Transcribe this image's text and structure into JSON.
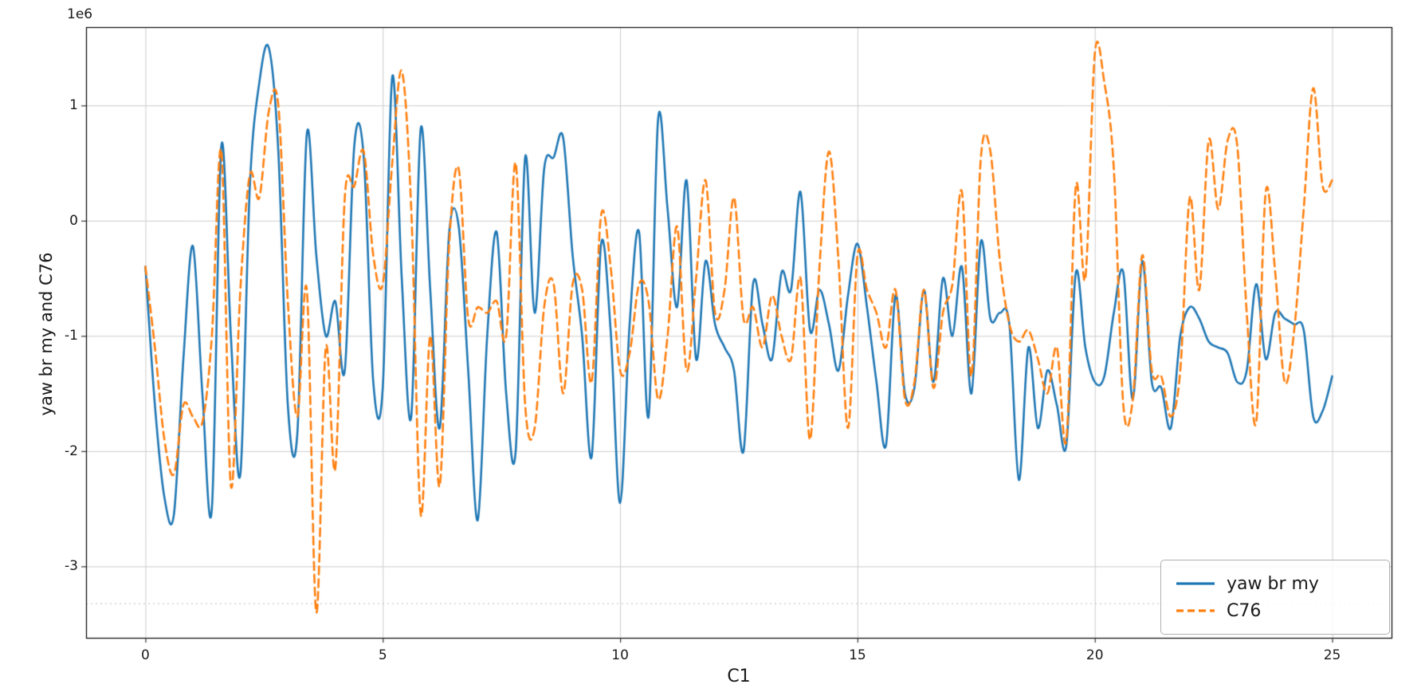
{
  "chart_data": {
    "type": "line",
    "title": "",
    "xlabel": "C1",
    "ylabel": "yaw br my and C76",
    "y_offset_label": "1e6",
    "y_unit_multiplier": 1000000,
    "x_start": 0,
    "x_step": 0.2,
    "xlim": [
      -1.25,
      26.25
    ],
    "ylim": [
      -3.62,
      1.68
    ],
    "xticks": [
      0,
      5,
      10,
      15,
      20,
      25
    ],
    "yticks": [
      1,
      0,
      -1,
      -2,
      -3
    ],
    "grid": true,
    "grid_color": "#cccccc",
    "dotted_line_y": -3.32,
    "spine_color": "#000000",
    "legend_position": "lower right",
    "series": [
      {
        "name": "yaw br my",
        "color": "#1f77b4",
        "style": "solid",
        "values": [
          -0.4,
          -1.6,
          -2.4,
          -2.55,
          -1.2,
          -0.22,
          -1.5,
          -2.5,
          0.65,
          -1.0,
          -2.2,
          0.3,
          1.2,
          1.5,
          0.6,
          -1.6,
          -1.85,
          0.75,
          -0.3,
          -1.0,
          -0.7,
          -1.3,
          0.65,
          0.55,
          -1.4,
          -1.45,
          1.25,
          -0.5,
          -1.7,
          0.8,
          -0.6,
          -1.8,
          -0.1,
          -0.05,
          -1.3,
          -2.6,
          -1.0,
          -0.1,
          -1.5,
          -2.0,
          0.55,
          -0.8,
          0.45,
          0.55,
          0.72,
          -0.3,
          -1.0,
          -2.05,
          -0.2,
          -0.95,
          -2.45,
          -0.9,
          -0.1,
          -1.7,
          0.88,
          0.1,
          -0.75,
          0.35,
          -1.2,
          -0.35,
          -0.9,
          -1.1,
          -1.3,
          -2.0,
          -0.55,
          -0.9,
          -1.2,
          -0.45,
          -0.6,
          0.25,
          -0.95,
          -0.6,
          -0.9,
          -1.3,
          -0.65,
          -0.2,
          -0.75,
          -1.4,
          -1.95,
          -0.65,
          -1.5,
          -1.45,
          -0.6,
          -1.4,
          -0.5,
          -1.0,
          -0.4,
          -1.5,
          -0.18,
          -0.85,
          -0.8,
          -0.9,
          -2.25,
          -1.1,
          -1.8,
          -1.3,
          -1.6,
          -1.95,
          -0.45,
          -1.1,
          -1.4,
          -1.35,
          -0.8,
          -0.45,
          -1.55,
          -0.35,
          -1.4,
          -1.45,
          -1.8,
          -1.0,
          -0.75,
          -0.85,
          -1.05,
          -1.1,
          -1.15,
          -1.4,
          -1.3,
          -0.55,
          -1.2,
          -0.8,
          -0.85,
          -0.9,
          -0.95,
          -1.7,
          -1.65,
          -1.35
        ]
      },
      {
        "name": "C76",
        "color": "#ff7f0e",
        "style": "dashed",
        "values": [
          -0.4,
          -1.1,
          -1.9,
          -2.2,
          -1.6,
          -1.7,
          -1.75,
          -1.0,
          0.6,
          -2.3,
          -0.6,
          0.4,
          0.2,
          0.95,
          1.0,
          -0.7,
          -1.7,
          -0.6,
          -3.4,
          -1.1,
          -2.15,
          0.2,
          0.3,
          0.6,
          -0.3,
          -0.55,
          0.5,
          1.3,
          0.1,
          -2.55,
          -1.0,
          -2.3,
          -0.2,
          0.45,
          -0.85,
          -0.75,
          -0.8,
          -0.7,
          -1.0,
          0.5,
          -1.6,
          -1.8,
          -0.75,
          -0.55,
          -1.5,
          -0.55,
          -0.6,
          -1.4,
          0.05,
          -0.4,
          -1.3,
          -1.15,
          -0.55,
          -0.7,
          -1.55,
          -1.0,
          -0.05,
          -1.3,
          -0.5,
          0.35,
          -0.8,
          -0.6,
          0.2,
          -0.85,
          -0.75,
          -1.1,
          -0.65,
          -1.0,
          -1.2,
          -0.5,
          -1.9,
          -0.4,
          0.6,
          -0.35,
          -1.8,
          -0.3,
          -0.6,
          -0.8,
          -1.1,
          -0.6,
          -1.55,
          -1.4,
          -0.6,
          -1.45,
          -0.8,
          -0.55,
          0.25,
          -1.35,
          0.55,
          0.6,
          -0.35,
          -0.9,
          -1.05,
          -0.95,
          -1.2,
          -1.5,
          -1.1,
          -1.9,
          0.3,
          -0.5,
          1.45,
          1.2,
          0.45,
          -1.6,
          -1.55,
          -0.3,
          -1.3,
          -1.35,
          -1.7,
          -1.3,
          0.2,
          -0.6,
          0.7,
          0.1,
          0.7,
          0.65,
          -0.8,
          -1.75,
          0.25,
          -0.45,
          -1.4,
          -0.95,
          0.1,
          1.15,
          0.3,
          0.35
        ]
      }
    ]
  }
}
